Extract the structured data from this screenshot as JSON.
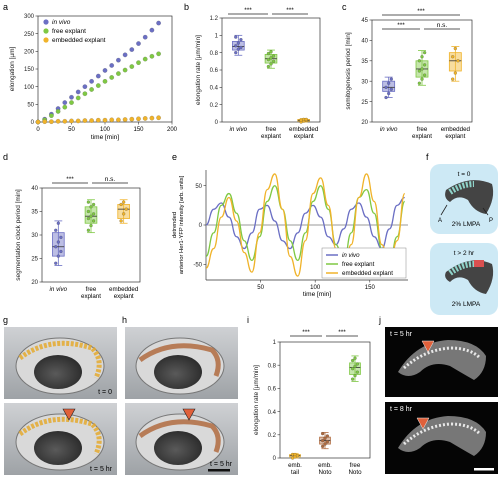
{
  "colors": {
    "invivo": "#6b6fc4",
    "free": "#7fc843",
    "embedded": "#f0b32a",
    "noto": "#b06b3f",
    "axis": "#333333"
  },
  "panels": {
    "a": "a",
    "b": "b",
    "c": "c",
    "d": "d",
    "e": "e",
    "f": "f",
    "g": "g",
    "h": "h",
    "i": "i",
    "j": "j"
  },
  "sig": {
    "three": "***",
    "ns": "n.s."
  },
  "chart_data": [
    {
      "id": "a",
      "type": "scatter",
      "xlabel": "time [min]",
      "ylabel": "elongation [µm]",
      "xlim": [
        0,
        200
      ],
      "ylim": [
        0,
        300
      ],
      "xticks": [
        "0",
        "50",
        "100",
        "150",
        "200"
      ],
      "yticks": [
        "0",
        "50",
        "100",
        "150",
        "200",
        "250",
        "300"
      ],
      "legend": [
        "in vivo",
        "free explant",
        "embedded explant"
      ],
      "series": [
        {
          "name": "in vivo",
          "x": [
            0,
            10,
            20,
            30,
            40,
            50,
            60,
            70,
            80,
            90,
            100,
            110,
            120,
            130,
            140,
            150,
            160,
            170,
            180
          ],
          "y": [
            0,
            8,
            22,
            38,
            55,
            70,
            85,
            100,
            115,
            130,
            146,
            160,
            175,
            190,
            205,
            222,
            240,
            260,
            280
          ]
        },
        {
          "name": "free explant",
          "x": [
            0,
            10,
            20,
            30,
            40,
            50,
            60,
            70,
            80,
            90,
            100,
            110,
            120,
            130,
            140,
            150,
            160,
            170,
            180
          ],
          "y": [
            0,
            6,
            18,
            30,
            42,
            55,
            68,
            80,
            92,
            103,
            115,
            126,
            137,
            147,
            157,
            168,
            178,
            186,
            193
          ]
        },
        {
          "name": "embedded explant",
          "x": [
            0,
            10,
            20,
            30,
            40,
            50,
            60,
            70,
            80,
            90,
            100,
            110,
            120,
            130,
            140,
            150,
            160,
            170,
            180
          ],
          "y": [
            0,
            1,
            1,
            2,
            2,
            3,
            3,
            4,
            4,
            5,
            5,
            6,
            6,
            7,
            8,
            9,
            10,
            11,
            12
          ]
        }
      ]
    },
    {
      "id": "b",
      "type": "box",
      "ylabel": "elongation rate [µm/min]",
      "ylim": [
        0,
        1.2
      ],
      "yticks": [
        "0",
        "0.2",
        "0.4",
        "0.6",
        "0.8",
        "1",
        "1.2"
      ],
      "categories": [
        "in vivo",
        "free\nexplant",
        "embedded\nexplant"
      ],
      "boxes": [
        {
          "q1": 0.83,
          "median": 0.87,
          "q3": 0.93,
          "min": 0.77,
          "max": 1.0,
          "points": [
            0.8,
            0.84,
            0.86,
            0.88,
            0.91,
            0.95,
            0.98
          ]
        },
        {
          "q1": 0.68,
          "median": 0.73,
          "q3": 0.78,
          "min": 0.62,
          "max": 0.83,
          "points": [
            0.64,
            0.67,
            0.7,
            0.72,
            0.74,
            0.76,
            0.79,
            0.81
          ]
        },
        {
          "q1": 0.01,
          "median": 0.02,
          "q3": 0.03,
          "min": 0.0,
          "max": 0.04,
          "points": [
            0.0,
            0.01,
            0.02,
            0.02,
            0.03,
            0.03
          ]
        }
      ]
    },
    {
      "id": "c",
      "type": "box",
      "ylabel": "somitogenesis period [min]",
      "ylim": [
        20,
        45
      ],
      "yticks": [
        "20",
        "25",
        "30",
        "35",
        "40",
        "45"
      ],
      "categories": [
        "in vivo",
        "free\nexplant",
        "embedded\nexplant"
      ],
      "boxes": [
        {
          "q1": 27.5,
          "median": 28.5,
          "q3": 30.0,
          "min": 26.0,
          "max": 31.0,
          "points": [
            26.0,
            27.0,
            28.0,
            28.5,
            29.5,
            30.5
          ]
        },
        {
          "q1": 31.0,
          "median": 33.0,
          "q3": 35.0,
          "min": 29.0,
          "max": 37.5,
          "points": [
            29.5,
            30.5,
            31.5,
            32.5,
            33.0,
            34.0,
            35.0,
            36.0,
            37.0
          ]
        },
        {
          "q1": 32.5,
          "median": 35.0,
          "q3": 37.0,
          "min": 30.0,
          "max": 38.5,
          "points": [
            30.5,
            32.0,
            35.0,
            36.0,
            38.0
          ]
        }
      ]
    },
    {
      "id": "d",
      "type": "box",
      "ylabel": "segmentation clock period [min]",
      "ylim": [
        20,
        40
      ],
      "yticks": [
        "20",
        "25",
        "30",
        "35",
        "40"
      ],
      "categories": [
        "in vivo",
        "free\nexplant",
        "embedded\nexplant"
      ],
      "boxes": [
        {
          "q1": 25.5,
          "median": 27.5,
          "q3": 30.5,
          "min": 23.5,
          "max": 33.0,
          "points": [
            24.0,
            25.5,
            26.5,
            27.5,
            28.5,
            29.5,
            31.0,
            32.5
          ]
        },
        {
          "q1": 32.5,
          "median": 34.0,
          "q3": 36.0,
          "min": 30.5,
          "max": 37.5,
          "points": [
            31.0,
            32.0,
            33.0,
            33.5,
            34.0,
            34.5,
            35.0,
            36.0,
            36.5,
            37.0
          ]
        },
        {
          "q1": 33.5,
          "median": 35.5,
          "q3": 36.5,
          "min": 32.5,
          "max": 37.5,
          "points": [
            33.0,
            34.5,
            35.5,
            36.5,
            37.0
          ]
        }
      ]
    },
    {
      "id": "e",
      "type": "line",
      "xlabel": "time [min]",
      "ylabel_line1": "detrended",
      "ylabel_line2": "anterior Her1-YFP intensity [arb. units]",
      "xlim": [
        0,
        185
      ],
      "ylim": [
        -70,
        70
      ],
      "xticks": [
        "50",
        "100",
        "150"
      ],
      "yticks": [
        "-50",
        "0",
        "50"
      ],
      "legend": [
        "in vivo",
        "free explant",
        "embedded explant"
      ],
      "series": [
        {
          "name": "in vivo",
          "x": [
            0,
            7,
            14,
            21,
            28,
            35,
            42,
            49,
            56,
            63,
            70,
            77,
            84,
            91,
            98,
            105,
            112,
            119,
            126,
            133,
            140,
            147,
            154,
            161,
            168,
            175,
            182
          ],
          "y": [
            0,
            20,
            28,
            10,
            -15,
            -30,
            -10,
            20,
            25,
            5,
            -20,
            -30,
            -10,
            15,
            25,
            10,
            -15,
            -25,
            -5,
            20,
            28,
            10,
            -15,
            -30,
            -5,
            25,
            35
          ]
        },
        {
          "name": "free explant",
          "x": [
            0,
            7,
            14,
            21,
            28,
            35,
            42,
            49,
            56,
            63,
            70,
            77,
            84,
            91,
            98,
            105,
            112,
            119,
            126,
            133,
            140,
            147,
            154,
            161,
            168,
            175,
            182
          ],
          "y": [
            -40,
            -10,
            25,
            40,
            15,
            -20,
            -45,
            -15,
            30,
            50,
            20,
            -20,
            -45,
            -10,
            30,
            50,
            20,
            -25,
            -50,
            -10,
            35,
            45,
            15,
            -30,
            -50,
            -15,
            30
          ]
        },
        {
          "name": "embedded explant",
          "x": [
            0,
            7,
            14,
            21,
            28,
            35,
            42,
            49,
            56,
            63,
            70,
            77,
            84,
            91,
            98,
            105,
            112,
            119,
            126,
            133,
            140,
            147,
            154,
            161,
            168,
            175,
            182
          ],
          "y": [
            -55,
            -30,
            10,
            35,
            5,
            -35,
            -60,
            -10,
            45,
            65,
            20,
            -40,
            -65,
            -20,
            40,
            60,
            25,
            -30,
            -60,
            -25,
            35,
            65,
            30,
            -25,
            -55,
            -20,
            40
          ]
        }
      ]
    },
    {
      "id": "i",
      "type": "box",
      "ylabel": "elongation rate [µm/min]",
      "ylim": [
        0,
        1.0
      ],
      "yticks": [
        "0",
        "0.2",
        "0.4",
        "0.6",
        "0.8",
        "1"
      ],
      "categories": [
        "emb.\ntail",
        "emb.\nNoto",
        "free\nNoto"
      ],
      "boxes": [
        {
          "q1": 0.01,
          "median": 0.02,
          "q3": 0.03,
          "min": 0.0,
          "max": 0.04,
          "points": [
            0.0,
            0.01,
            0.02,
            0.03,
            0.03
          ]
        },
        {
          "q1": 0.12,
          "median": 0.15,
          "q3": 0.18,
          "min": 0.08,
          "max": 0.22,
          "points": [
            0.1,
            0.12,
            0.14,
            0.15,
            0.17,
            0.19,
            0.21
          ]
        },
        {
          "q1": 0.72,
          "median": 0.78,
          "q3": 0.82,
          "min": 0.66,
          "max": 0.88,
          "points": [
            0.68,
            0.71,
            0.74,
            0.77,
            0.79,
            0.81,
            0.84,
            0.86
          ]
        }
      ]
    }
  ],
  "schematic_f": {
    "top_time": "t = 0",
    "top_medium": "2% LMPA",
    "top_a": "A",
    "top_p": "P",
    "bottom_time": "t > 2 hr",
    "bottom_medium": "2% LMPA"
  },
  "micrographs": {
    "g_top": "t = 0",
    "g_bottom": "t = 5 hr",
    "h_bottom": "t = 5 hr",
    "j_top": "t = 5 hr",
    "j_bottom": "t = 8 hr"
  }
}
